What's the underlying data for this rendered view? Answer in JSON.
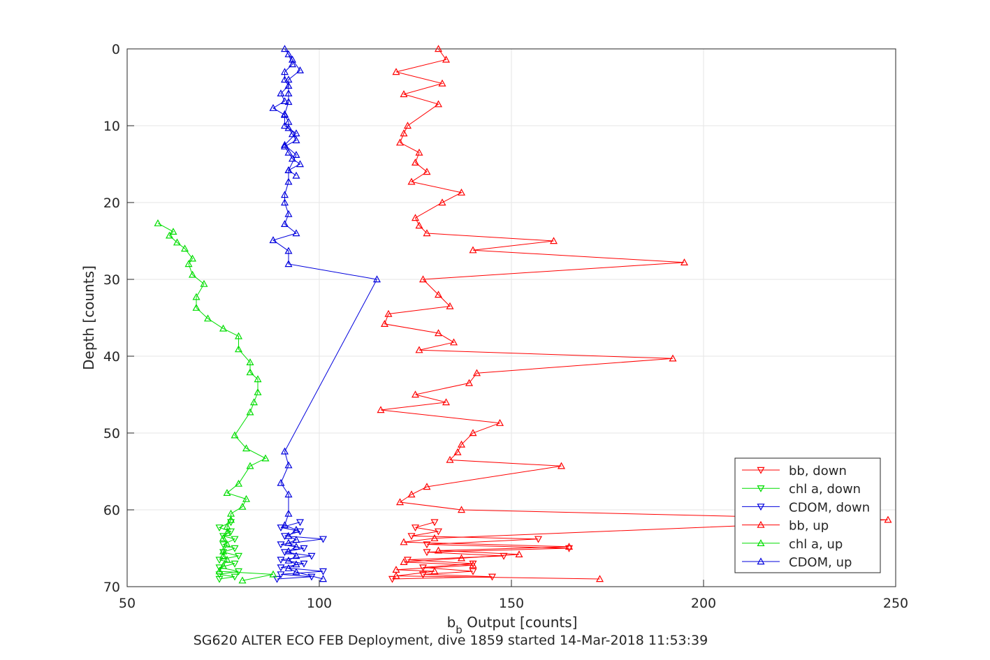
{
  "chart_data": {
    "type": "line",
    "xlabel_main": "b",
    "xlabel_sub": "b",
    "xlabel_rest": " Output [counts]",
    "ylabel": "Depth [counts]",
    "caption": "SG620 ALTER ECO FEB Deployment, dive 1859 started 14-Mar-2018 11:53:39",
    "xlim": [
      50,
      250
    ],
    "ylim": [
      0,
      70
    ],
    "y_reversed": true,
    "grid": true,
    "x_ticks": [
      "50",
      "100",
      "150",
      "200",
      "250"
    ],
    "y_ticks": [
      "0",
      "10",
      "20",
      "30",
      "40",
      "50",
      "60",
      "70"
    ],
    "legend_position": "bottom-right",
    "series": [
      {
        "name": "bb, down",
        "color": "#ff0000",
        "marker": "down",
        "x": [
          119,
          145,
          127,
          140,
          127,
          140,
          123,
          148,
          128,
          165,
          128,
          157,
          124,
          131,
          125,
          130
        ],
        "y": [
          69.0,
          68.7,
          68.4,
          68.0,
          67.5,
          67.0,
          66.5,
          66.0,
          65.5,
          65.0,
          64.5,
          63.8,
          63.4,
          62.8,
          62.3,
          61.6
        ]
      },
      {
        "name": "chl a, down",
        "color": "#00dd00",
        "marker": "down",
        "x": [
          74,
          78,
          74,
          79,
          74,
          78,
          74,
          79,
          75,
          78,
          75,
          78,
          75,
          77,
          74,
          77
        ],
        "y": [
          69.0,
          68.7,
          68.4,
          68.0,
          67.5,
          67.0,
          66.5,
          66.0,
          65.5,
          65.0,
          64.5,
          63.8,
          63.4,
          62.8,
          62.3,
          61.6
        ]
      },
      {
        "name": "CDOM, down",
        "color": "#0000dd",
        "marker": "down",
        "x": [
          89,
          98,
          90,
          101,
          90,
          96,
          90,
          98,
          91,
          96,
          90,
          101,
          91,
          95,
          90,
          95
        ],
        "y": [
          69.0,
          68.7,
          68.4,
          68.0,
          67.5,
          67.0,
          66.5,
          66.0,
          65.5,
          65.0,
          64.5,
          63.8,
          63.4,
          62.8,
          62.3,
          61.6
        ]
      },
      {
        "name": "bb, up",
        "color": "#ff0000",
        "marker": "up",
        "x": [
          173,
          120,
          130,
          120,
          140,
          122,
          137,
          152,
          131,
          165,
          122,
          130,
          248,
          137,
          121,
          124,
          128,
          163,
          134,
          136,
          137,
          140,
          147,
          116,
          133,
          125,
          139,
          141,
          192,
          126,
          135,
          131,
          117,
          118,
          134,
          131,
          127,
          195,
          140,
          161,
          128,
          126,
          125,
          132,
          137,
          124,
          128,
          125,
          126,
          121,
          122,
          123,
          131,
          122,
          132,
          120,
          133,
          131
        ],
        "y": [
          69.0,
          68.6,
          68.0,
          67.8,
          67.2,
          66.8,
          66.3,
          65.8,
          65.3,
          64.8,
          64.2,
          63.7,
          61.3,
          60.0,
          59.0,
          58.0,
          57.0,
          54.3,
          53.5,
          52.5,
          51.5,
          50.0,
          48.7,
          47.0,
          46.0,
          45.0,
          43.5,
          42.2,
          40.3,
          39.2,
          38.2,
          37.0,
          35.8,
          34.5,
          33.5,
          32.0,
          30.0,
          27.8,
          26.2,
          25.0,
          24.0,
          23.0,
          22.0,
          20.0,
          18.7,
          17.3,
          16.0,
          14.8,
          13.5,
          12.2,
          11.0,
          10.0,
          7.2,
          5.9,
          4.5,
          3.0,
          1.4,
          0.0
        ]
      },
      {
        "name": "chl a, up",
        "color": "#00dd00",
        "marker": "up",
        "x": [
          80,
          88,
          74,
          75,
          76,
          75,
          75,
          76,
          75,
          76,
          76,
          77,
          77,
          80,
          81,
          76,
          79,
          82,
          86,
          81,
          78,
          82,
          83,
          84,
          84,
          82,
          82,
          79,
          79,
          75,
          71,
          68,
          68,
          70,
          67,
          66,
          67,
          65,
          63,
          61,
          62,
          58
        ],
        "y": [
          69.2,
          68.4,
          68.0,
          67.3,
          66.5,
          66.0,
          65.4,
          64.5,
          63.7,
          63.0,
          62.2,
          61.3,
          60.5,
          59.6,
          58.6,
          57.8,
          56.6,
          54.3,
          53.3,
          52.0,
          50.3,
          47.3,
          46.0,
          44.7,
          43.0,
          42.1,
          40.8,
          39.1,
          37.4,
          36.4,
          35.1,
          33.7,
          32.3,
          30.6,
          29.4,
          28.0,
          27.3,
          26.0,
          25.2,
          24.3,
          23.8,
          22.7
        ]
      },
      {
        "name": "CDOM, up",
        "color": "#0000dd",
        "marker": "up",
        "x": [
          101,
          94,
          92,
          94,
          92,
          94,
          92,
          94,
          92,
          94,
          92,
          94,
          91,
          92,
          92,
          90,
          92,
          91,
          115,
          92,
          92,
          88,
          94,
          91,
          92,
          91,
          91,
          92,
          92,
          94,
          91,
          94,
          91,
          91,
          92,
          92,
          92,
          95,
          93,
          91,
          92,
          93,
          91,
          91,
          92,
          90,
          91,
          88,
          91,
          92,
          92,
          93,
          94,
          91,
          92,
          93,
          95,
          92,
          94
        ],
        "y": [
          69.0,
          68.1,
          67.6,
          67.1,
          66.6,
          66.0,
          65.4,
          64.8,
          64.3,
          63.9,
          63.4,
          62.6,
          62.0,
          60.5,
          58.0,
          56.5,
          54.2,
          52.4,
          30.0,
          28.0,
          26.3,
          24.9,
          24.0,
          22.8,
          21.5,
          20.0,
          19.0,
          17.3,
          15.8,
          13.8,
          12.5,
          11.0,
          10.0,
          8.5,
          6.9,
          5.8,
          4.0,
          2.8,
          1.4,
          0.0,
          0.7,
          2.0,
          3.0,
          4.0,
          4.8,
          5.8,
          6.8,
          7.7,
          8.6,
          9.5,
          10.3,
          11.1,
          11.9,
          12.7,
          13.5,
          14.3,
          15.0,
          15.8,
          16.5
        ]
      }
    ]
  }
}
